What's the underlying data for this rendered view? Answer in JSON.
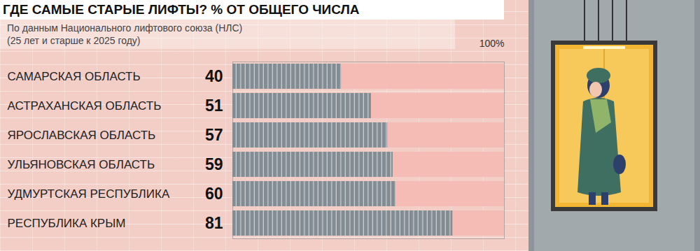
{
  "chart_data": {
    "type": "bar",
    "orientation": "horizontal",
    "title": "ГДЕ САМЫЕ СТАРЫЕ ЛИФТЫ? % ОТ ОБЩЕГО ЧИСЛА",
    "subtitle": "По данным Национального лифтового союза (НЛС)\n(25 лет и старше к 2025 году)",
    "categories": [
      "САМАРСКАЯ ОБЛАСТЬ",
      "АСТРАХАНСКАЯ ОБЛАСТЬ",
      "ЯРОСЛАВСКАЯ ОБЛАСТЬ",
      "УЛЬЯНОВСКАЯ ОБЛАСТЬ",
      "УДМУРТСКАЯ РЕСПУБЛИКА",
      "РЕСПУБЛИКА КРЫМ"
    ],
    "values": [
      40,
      51,
      57,
      59,
      60,
      81
    ],
    "color": "#838c93",
    "xlim": [
      0,
      100
    ],
    "xticks": [
      {
        "value": 100,
        "label": "100%"
      }
    ],
    "data_labels": true
  }
}
